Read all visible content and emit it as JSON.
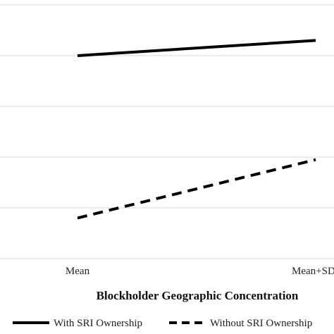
{
  "chart_data": {
    "type": "line",
    "categories": [
      "Mean",
      "Mean+SD"
    ],
    "xlabel": "Blockholder Geographic Concentration",
    "ylabel": "",
    "ylim": [
      0,
      5
    ],
    "grid": true,
    "legend": "bottom",
    "series": [
      {
        "name": "With SRI Ownership",
        "values": [
          4.0,
          4.3
        ],
        "dash": "solid",
        "color": "#000000"
      },
      {
        "name": "Without SRI Ownership",
        "values": [
          0.8,
          1.95
        ],
        "dash": "dashed",
        "color": "#000000"
      }
    ]
  }
}
